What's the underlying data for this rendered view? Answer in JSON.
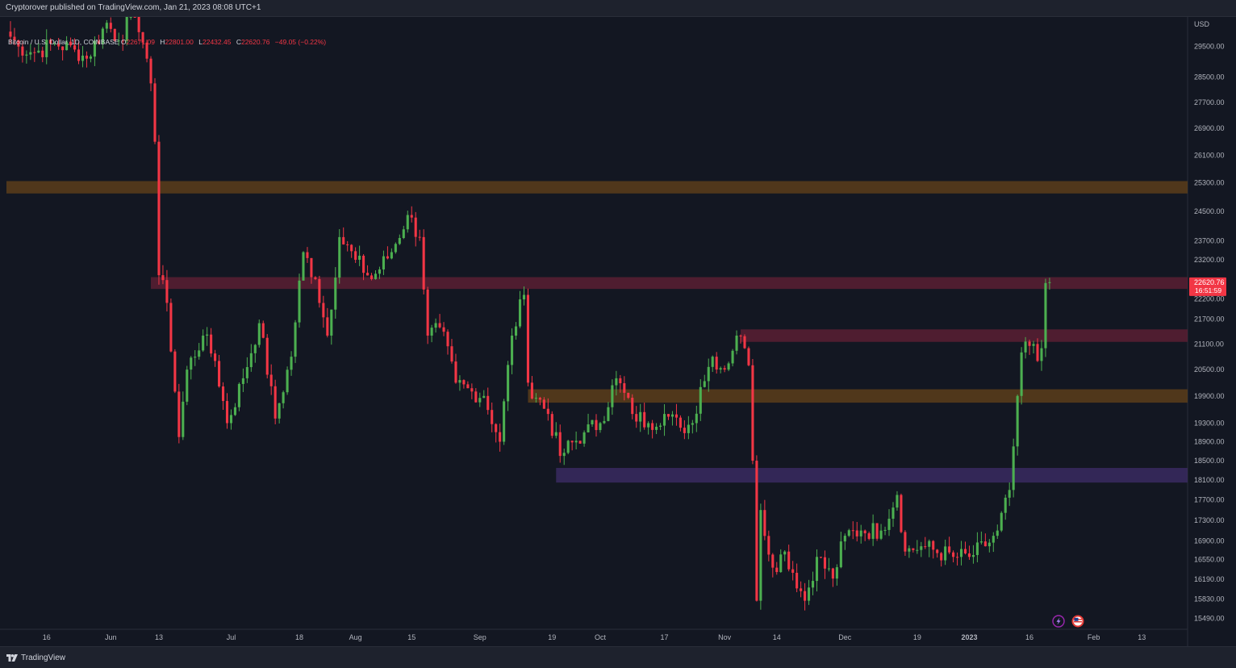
{
  "header": {
    "published_text": "Cryptorover published on TradingView.com, Jan 21, 2023 08:08 UTC+1"
  },
  "legend": {
    "symbol": "Bitcoin / U.S. Dollar, 1D, COINBASE",
    "open_label": "O",
    "open": "22671.09",
    "high_label": "H",
    "high": "22801.00",
    "low_label": "L",
    "low": "22432.45",
    "close_label": "C",
    "close": "22620.76",
    "change": "−49.05 (−0.22%)"
  },
  "price_axis": {
    "currency": "USD",
    "current_price": "22620.76",
    "countdown": "16:51:59",
    "current_color": "#f23645"
  },
  "footer": {
    "brand": "TradingView"
  },
  "colors": {
    "background": "#131722",
    "up": "#26a69a",
    "up_candle": "#4caf50",
    "down_candle": "#f23645",
    "zone_orange": "#5c3d1a",
    "zone_red": "#5a1f32",
    "zone_purple": "#3a2a60"
  },
  "icons": [
    "lightning-icon",
    "flag-icon",
    "tradingview-logo-icon"
  ],
  "chart_data": {
    "type": "candlestick",
    "title": "Bitcoin / U.S. Dollar, 1D, COINBASE",
    "y_axis": {
      "scale": "log",
      "range": [
        15300,
        30500
      ],
      "ticks": [
        29500,
        28500,
        27700,
        26900,
        26100,
        25300,
        24500,
        23700,
        23200,
        22200,
        21700,
        21100,
        20500,
        19900,
        19300,
        18900,
        18500,
        18100,
        17700,
        17300,
        16900,
        16550,
        16190,
        15830,
        15490
      ],
      "tick_labels": [
        "29500.00",
        "28500.00",
        "27700.00",
        "26900.00",
        "26100.00",
        "25300.00",
        "24500.00",
        "23700.00",
        "23200.00",
        "22200.00",
        "21700.00",
        "21100.00",
        "20500.00",
        "19900.00",
        "19300.00",
        "18900.00",
        "18500.00",
        "18100.00",
        "17700.00",
        "17300.00",
        "16900.00",
        "16550.00",
        "16190.00",
        "15830.00",
        "15490.00"
      ]
    },
    "x_axis": {
      "range": [
        "2022-05-06",
        "2023-02-24"
      ],
      "ticks": [
        {
          "label": "16",
          "date": "2022-05-16"
        },
        {
          "label": "Jun",
          "date": "2022-06-01"
        },
        {
          "label": "13",
          "date": "2022-06-13"
        },
        {
          "label": "Jul",
          "date": "2022-07-01"
        },
        {
          "label": "18",
          "date": "2022-07-18"
        },
        {
          "label": "Aug",
          "date": "2022-08-01"
        },
        {
          "label": "15",
          "date": "2022-08-15"
        },
        {
          "label": "Sep",
          "date": "2022-09-01"
        },
        {
          "label": "19",
          "date": "2022-09-19"
        },
        {
          "label": "Oct",
          "date": "2022-10-01"
        },
        {
          "label": "17",
          "date": "2022-10-17"
        },
        {
          "label": "Nov",
          "date": "2022-11-01"
        },
        {
          "label": "14",
          "date": "2022-11-14"
        },
        {
          "label": "Dec",
          "date": "2022-12-01"
        },
        {
          "label": "19",
          "date": "2022-12-19"
        },
        {
          "label": "2023",
          "date": "2023-01-01",
          "bold": true
        },
        {
          "label": "16",
          "date": "2023-01-16"
        },
        {
          "label": "Feb",
          "date": "2023-02-01"
        },
        {
          "label": "13",
          "date": "2023-02-13"
        }
      ]
    },
    "zones": [
      {
        "name": "resistance-25k",
        "from": 25000,
        "to": 25350,
        "start": "2022-05-06",
        "color": "#5c3d1a"
      },
      {
        "name": "resistance-22.6k",
        "from": 22450,
        "to": 22750,
        "start": "2022-06-11",
        "color": "#5a1f32"
      },
      {
        "name": "resistance-21.3k",
        "from": 21150,
        "to": 21450,
        "start": "2022-11-05",
        "color": "#5a1f32"
      },
      {
        "name": "support-20k",
        "from": 19750,
        "to": 20050,
        "start": "2022-09-13",
        "color": "#5c3d1a"
      },
      {
        "name": "support-18.2k",
        "from": 18050,
        "to": 18350,
        "start": "2022-09-20",
        "color": "#3a2a60"
      }
    ],
    "anchors": [
      [
        "2022-05-06",
        30000
      ],
      [
        "2022-05-09",
        29500
      ],
      [
        "2022-05-13",
        29300
      ],
      [
        "2022-05-18",
        29600
      ],
      [
        "2022-05-23",
        29400
      ],
      [
        "2022-05-26",
        29100
      ],
      [
        "2022-05-31",
        30300
      ],
      [
        "2022-06-03",
        29700
      ],
      [
        "2022-06-07",
        30800
      ],
      [
        "2022-06-10",
        29100
      ],
      [
        "2022-06-11",
        28300
      ],
      [
        "2022-06-12",
        26500
      ],
      [
        "2022-06-13",
        22800
      ],
      [
        "2022-06-15",
        22100
      ],
      [
        "2022-06-18",
        19000
      ],
      [
        "2022-06-20",
        20500
      ],
      [
        "2022-06-24",
        21300
      ],
      [
        "2022-06-27",
        20700
      ],
      [
        "2022-06-30",
        19300
      ],
      [
        "2022-07-04",
        20300
      ],
      [
        "2022-07-08",
        21600
      ],
      [
        "2022-07-12",
        19400
      ],
      [
        "2022-07-16",
        20800
      ],
      [
        "2022-07-19",
        23400
      ],
      [
        "2022-07-22",
        22700
      ],
      [
        "2022-07-25",
        21300
      ],
      [
        "2022-07-28",
        23800
      ],
      [
        "2022-08-01",
        23200
      ],
      [
        "2022-08-05",
        22700
      ],
      [
        "2022-08-10",
        23400
      ],
      [
        "2022-08-14",
        24400
      ],
      [
        "2022-08-17",
        23800
      ],
      [
        "2022-08-19",
        21300
      ],
      [
        "2022-08-22",
        21500
      ],
      [
        "2022-08-26",
        20200
      ],
      [
        "2022-08-30",
        20000
      ],
      [
        "2022-09-02",
        19900
      ],
      [
        "2022-09-06",
        18900
      ],
      [
        "2022-09-09",
        21300
      ],
      [
        "2022-09-12",
        22300
      ],
      [
        "2022-09-13",
        20200
      ],
      [
        "2022-09-18",
        19500
      ],
      [
        "2022-09-21",
        18600
      ],
      [
        "2022-09-27",
        19100
      ],
      [
        "2022-10-01",
        19300
      ],
      [
        "2022-10-05",
        20300
      ],
      [
        "2022-10-09",
        19500
      ],
      [
        "2022-10-13",
        19300
      ],
      [
        "2022-10-17",
        19500
      ],
      [
        "2022-10-21",
        19200
      ],
      [
        "2022-10-24",
        19300
      ],
      [
        "2022-10-26",
        20100
      ],
      [
        "2022-10-29",
        20800
      ],
      [
        "2022-11-01",
        20500
      ],
      [
        "2022-11-04",
        21300
      ],
      [
        "2022-11-06",
        21000
      ],
      [
        "2022-11-07",
        20600
      ],
      [
        "2022-11-08",
        18500
      ],
      [
        "2022-11-09",
        15800
      ],
      [
        "2022-11-10",
        17500
      ],
      [
        "2022-11-13",
        16400
      ],
      [
        "2022-11-16",
        16700
      ],
      [
        "2022-11-21",
        15800
      ],
      [
        "2022-11-24",
        16600
      ],
      [
        "2022-11-28",
        16200
      ],
      [
        "2022-12-01",
        17000
      ],
      [
        "2022-12-05",
        17100
      ],
      [
        "2022-12-10",
        17100
      ],
      [
        "2022-12-14",
        17800
      ],
      [
        "2022-12-16",
        16700
      ],
      [
        "2022-12-20",
        16800
      ],
      [
        "2022-12-28",
        16600
      ],
      [
        "2023-01-01",
        16600
      ],
      [
        "2023-01-05",
        16800
      ],
      [
        "2023-01-08",
        17100
      ],
      [
        "2023-01-11",
        17900
      ],
      [
        "2023-01-12",
        18800
      ],
      [
        "2023-01-13",
        19900
      ],
      [
        "2023-01-14",
        20900
      ],
      [
        "2023-01-17",
        21100
      ],
      [
        "2023-01-18",
        20700
      ],
      [
        "2023-01-19",
        21000
      ],
      [
        "2023-01-20",
        22600
      ],
      [
        "2023-01-21",
        22620
      ]
    ]
  }
}
